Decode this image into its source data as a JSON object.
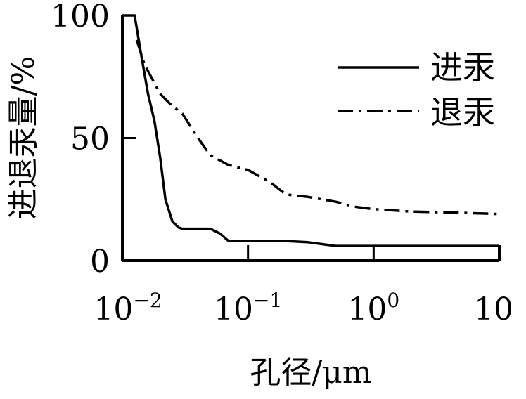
{
  "chart_data": {
    "type": "line",
    "xlabel": "孔径/μm",
    "ylabel": "进退汞量/%",
    "x_scale": "log",
    "xlim": [
      0.01,
      10
    ],
    "ylim": [
      0,
      100
    ],
    "x_ticks": [
      {
        "base": "10",
        "exp": "−2",
        "value": 0.01
      },
      {
        "base": "10",
        "exp": "−1",
        "value": 0.1
      },
      {
        "base": "10",
        "exp": "0",
        "value": 1
      },
      {
        "base": "10",
        "exp": "",
        "value": 10
      }
    ],
    "y_ticks": [
      {
        "label": "100",
        "value": 100
      },
      {
        "label": "50",
        "value": 50
      },
      {
        "label": "0",
        "value": 0
      }
    ],
    "grid": false,
    "legend_position": "top-right",
    "series": [
      {
        "name": "进汞",
        "style": "solid",
        "x": [
          0.01,
          0.0125,
          0.013,
          0.014,
          0.016,
          0.018,
          0.02,
          0.022,
          0.025,
          0.028,
          0.03,
          0.04,
          0.05,
          0.06,
          0.07,
          0.1,
          0.2,
          0.3,
          0.5,
          1,
          3,
          10
        ],
        "y": [
          100,
          100,
          95,
          85,
          68,
          57,
          42,
          25,
          16,
          13.5,
          13,
          13,
          13,
          11,
          8,
          8,
          8,
          7.5,
          6,
          6,
          6,
          6
        ]
      },
      {
        "name": "退汞",
        "style": "dash-dot",
        "x": [
          0.013,
          0.015,
          0.02,
          0.025,
          0.03,
          0.04,
          0.05,
          0.07,
          0.1,
          0.15,
          0.2,
          0.3,
          0.5,
          0.7,
          1,
          2,
          5,
          10
        ],
        "y": [
          90,
          80,
          68,
          63,
          60,
          50,
          43,
          39,
          37,
          32,
          27,
          26,
          24,
          22,
          21,
          20,
          19.5,
          19
        ]
      }
    ]
  }
}
